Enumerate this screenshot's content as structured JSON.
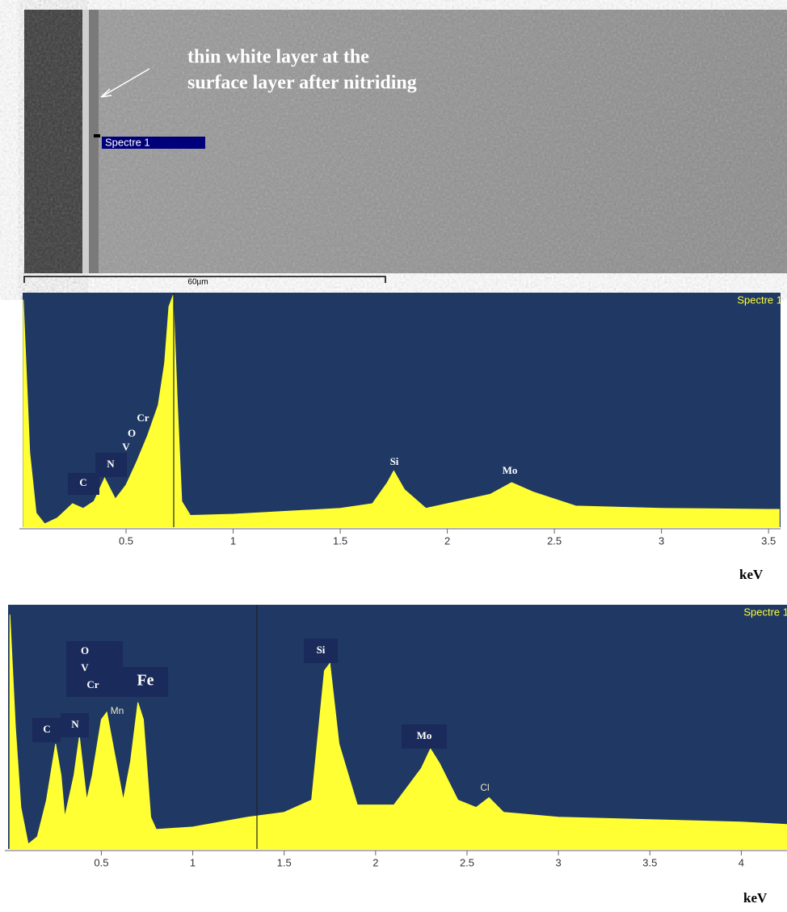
{
  "image": {
    "annotation": [
      "thin white layer at the",
      "surface layer after nitriding"
    ],
    "marker_label": "Spectre 1",
    "scale_bar": "60µm"
  },
  "chart_data": [
    {
      "type": "area",
      "title": "Spectre 1",
      "x_label": "keV",
      "color": "#ffff33",
      "background": "#1f3864",
      "xlim": [
        0.017,
        3.556
      ],
      "ylim": [
        0,
        100
      ],
      "xticks": [
        0.5,
        1,
        1.5,
        2,
        2.5,
        3,
        3.5
      ],
      "annotations": [
        "C",
        "N",
        "O",
        "V",
        "Cr",
        "Si",
        "Mo"
      ],
      "x": [
        0.02,
        0.05,
        0.08,
        0.12,
        0.18,
        0.25,
        0.3,
        0.35,
        0.4,
        0.45,
        0.5,
        0.55,
        0.6,
        0.65,
        0.68,
        0.7,
        0.72,
        0.74,
        0.76,
        0.8,
        1.0,
        1.5,
        1.65,
        1.72,
        1.75,
        1.8,
        1.9,
        2.2,
        2.3,
        2.4,
        2.6,
        3.0,
        3.5,
        3.55
      ],
      "values": [
        97,
        32,
        6,
        1.4,
        4,
        10,
        8,
        11,
        21,
        12,
        18,
        28,
        39,
        52,
        70,
        94,
        99,
        52,
        11,
        5,
        5.5,
        8,
        10,
        19,
        24,
        16,
        8,
        14,
        19,
        15,
        9,
        8,
        7.6,
        7.6
      ]
    },
    {
      "type": "area",
      "title": "Spectre 1",
      "x_label": "keV",
      "color": "#ffff33",
      "background": "#1f3864",
      "xlim": [
        -0.01,
        4.25
      ],
      "ylim": [
        0,
        100
      ],
      "xticks": [
        0.5,
        1,
        1.5,
        2,
        2.5,
        3,
        3.5,
        4
      ],
      "annotations": [
        "C",
        "N",
        "O",
        "V",
        "Cr",
        "Fe",
        "Mn",
        "Si",
        "Mo",
        "Cl"
      ],
      "x": [
        0.0,
        0.03,
        0.06,
        0.1,
        0.15,
        0.2,
        0.25,
        0.28,
        0.3,
        0.35,
        0.38,
        0.42,
        0.45,
        0.5,
        0.53,
        0.57,
        0.62,
        0.66,
        0.7,
        0.73,
        0.77,
        0.8,
        1.0,
        1.3,
        1.5,
        1.65,
        1.72,
        1.75,
        1.8,
        1.9,
        2.1,
        2.25,
        2.3,
        2.35,
        2.45,
        2.55,
        2.62,
        2.7,
        3.0,
        3.5,
        4.0,
        4.25
      ],
      "values": [
        96,
        50,
        17,
        2,
        5,
        20,
        43,
        30,
        13,
        30,
        46,
        20,
        30,
        53,
        56,
        40,
        20,
        36,
        60,
        53,
        13,
        8,
        9,
        13,
        15,
        20,
        73,
        76,
        43,
        18,
        18,
        33,
        41,
        35,
        20,
        17,
        21,
        15,
        13,
        12,
        11,
        10
      ]
    }
  ]
}
